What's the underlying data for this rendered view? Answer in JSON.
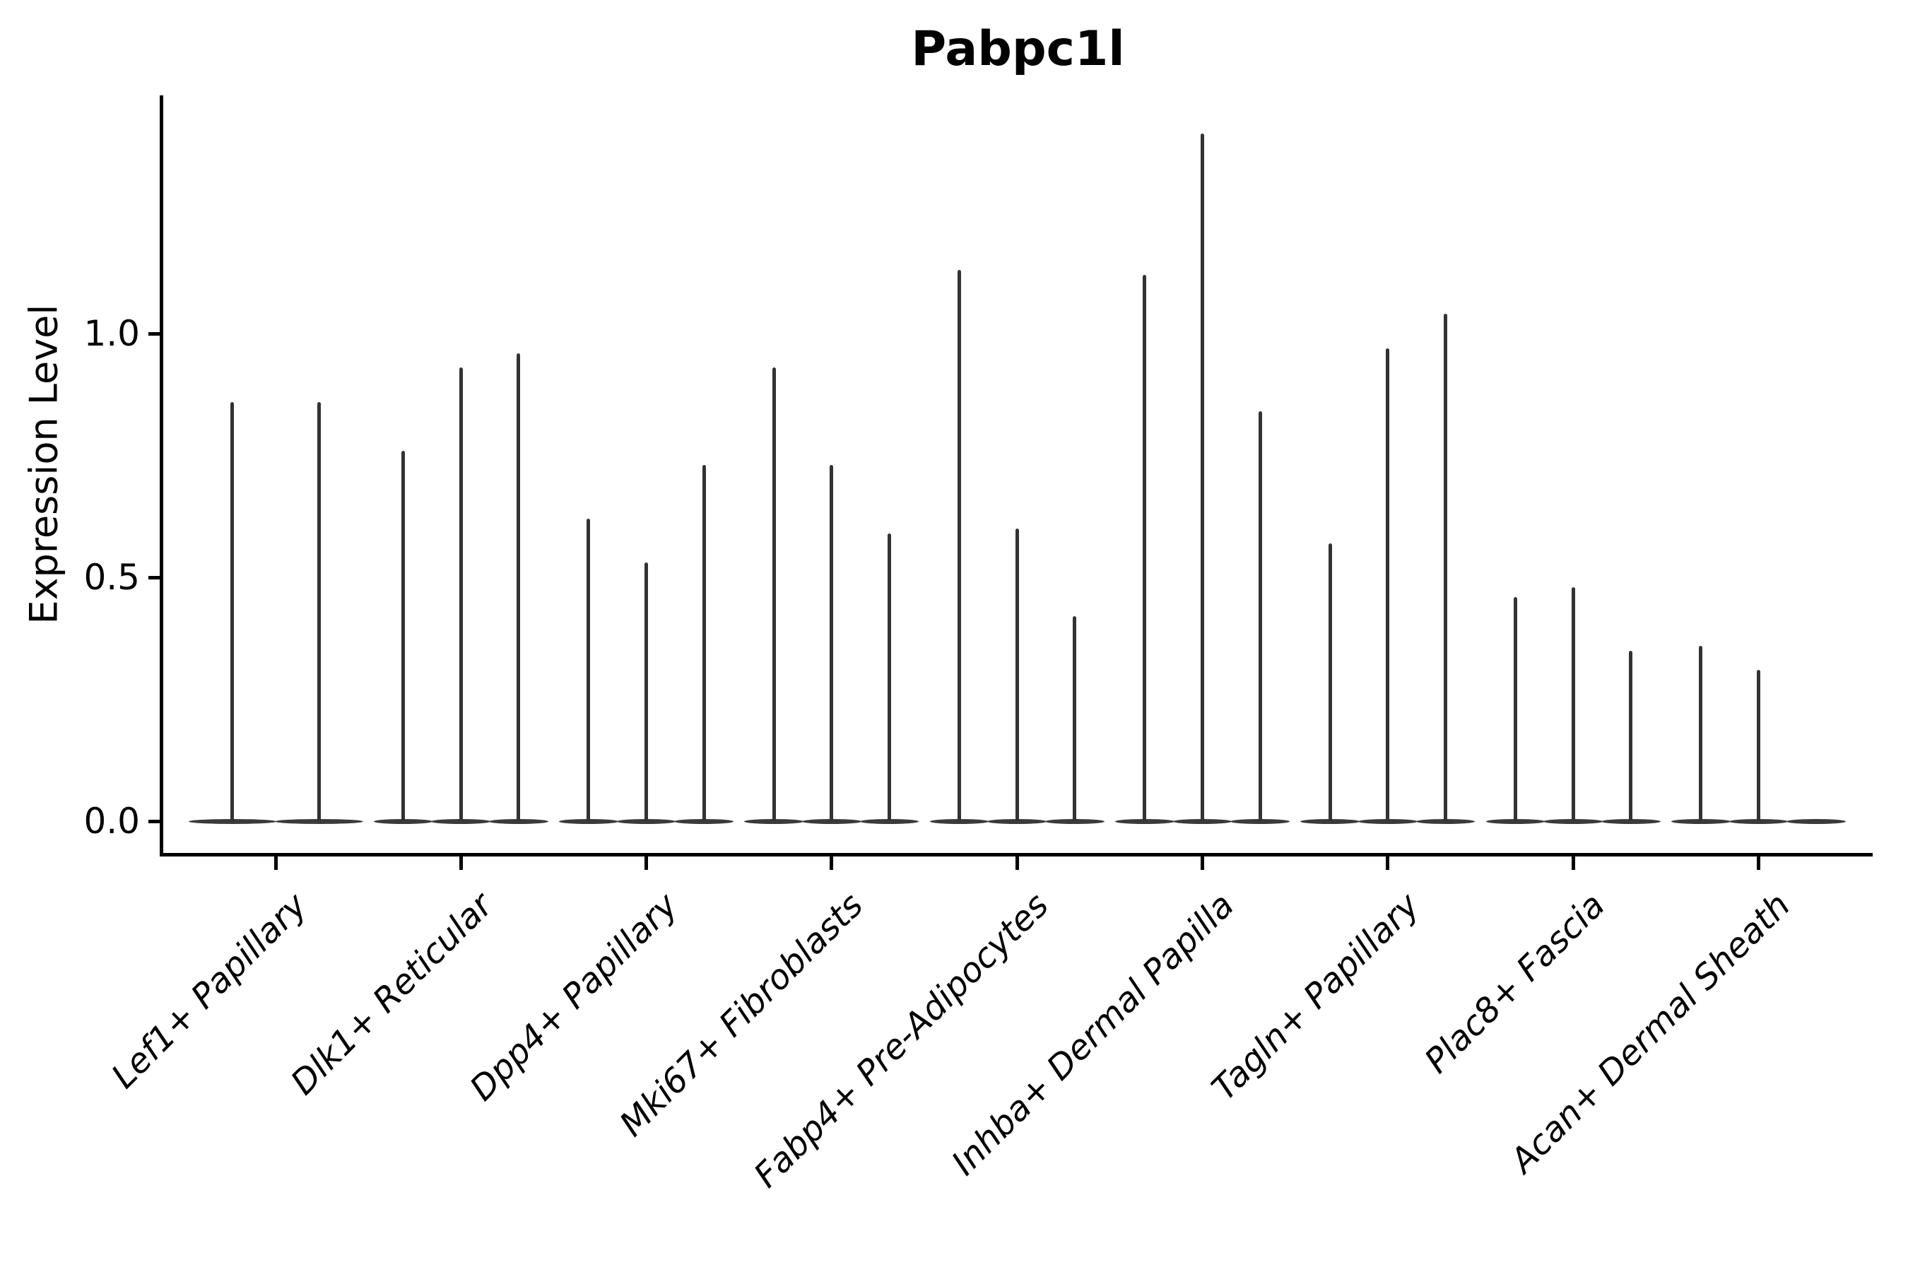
{
  "title": "Pabpc1l",
  "y_axis": {
    "label": "Expression Level",
    "tick_labels": [
      "0.0",
      "0.5",
      "1.0"
    ],
    "tick_values": [
      0.0,
      0.5,
      1.0
    ]
  },
  "chart_data": {
    "type": "violin",
    "title": "Pabpc1l",
    "xlabel": "",
    "ylabel": "Expression Level",
    "ylim": [
      -0.07,
      1.49
    ],
    "yticks": [
      0.0,
      0.5,
      1.0
    ],
    "grid": false,
    "legend": "none",
    "violin_color": "#333333",
    "axis_color": "#000000",
    "categories": [
      "Lef1+ Papillary",
      "Dlk1+ Reticular",
      "Dpp4+ Papillary",
      "Mki67+ Fibroblasts",
      "Fabp4+ Pre-Adipocytes",
      "Inhba+ Dermal Papilla",
      "Tagln+ Papillary",
      "Plac8+ Fascia",
      "Acan+ Dermal Sheath"
    ],
    "series": [
      {
        "category": "Lef1+ Papillary",
        "violin_maxima": [
          0.86,
          0.86
        ]
      },
      {
        "category": "Dlk1+ Reticular",
        "violin_maxima": [
          0.76,
          0.93,
          0.96
        ]
      },
      {
        "category": "Dpp4+ Papillary",
        "violin_maxima": [
          0.62,
          0.53,
          0.73
        ]
      },
      {
        "category": "Mki67+ Fibroblasts",
        "violin_maxima": [
          0.93,
          0.73,
          0.59
        ]
      },
      {
        "category": "Fabp4+ Pre-Adipocytes",
        "violin_maxima": [
          1.13,
          0.6,
          0.42
        ]
      },
      {
        "category": "Inhba+ Dermal Papilla",
        "violin_maxima": [
          1.12,
          1.41,
          0.84
        ]
      },
      {
        "category": "Tagln+ Papillary",
        "violin_maxima": [
          0.57,
          0.97,
          1.04
        ]
      },
      {
        "category": "Plac8+ Fascia",
        "violin_maxima": [
          0.46,
          0.48,
          0.35
        ]
      },
      {
        "category": "Acan+ Dermal Sheath",
        "violin_maxima": [
          0.36,
          0.31,
          0.0
        ]
      }
    ]
  }
}
